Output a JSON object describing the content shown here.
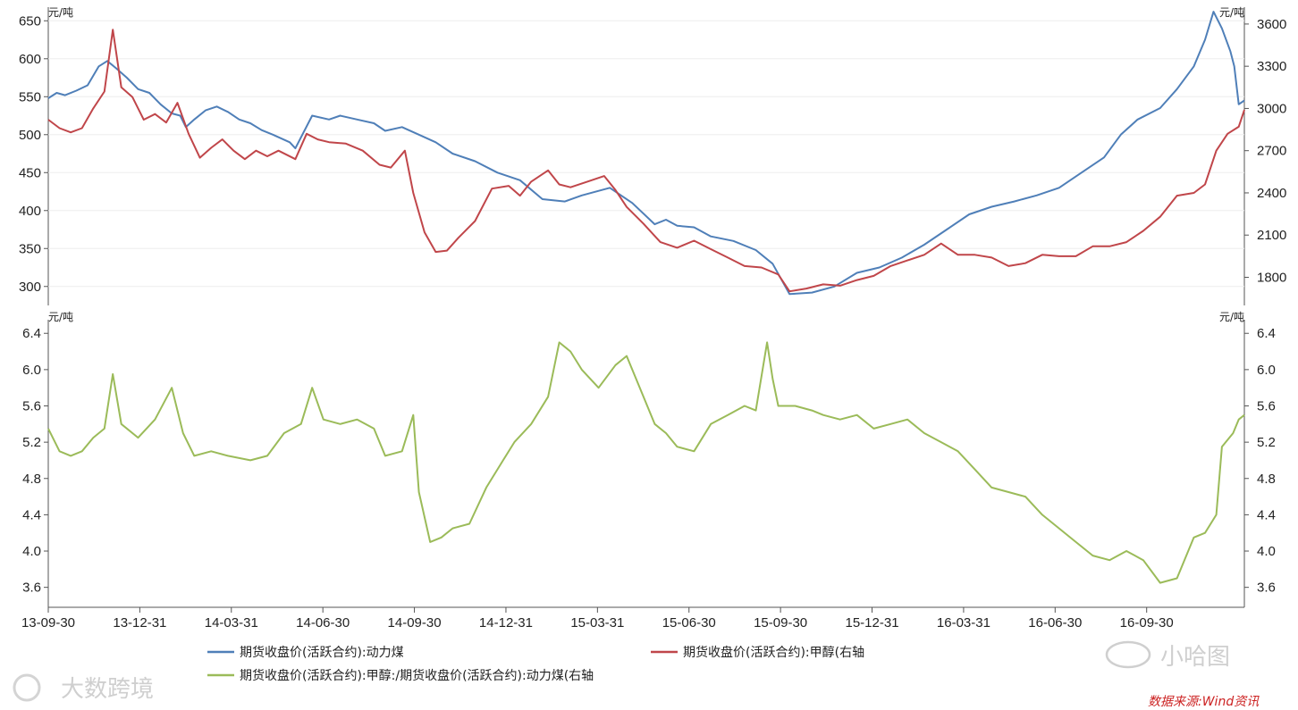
{
  "colors": {
    "coal": "#4f7fb8",
    "methanol": "#c0464a",
    "ratio": "#9bbb59",
    "axis": "#555555",
    "grid": "#eeeeee",
    "source": "#cc2222"
  },
  "units": {
    "top_left": "元/吨",
    "top_right": "元/吨",
    "bottom_left": "元/吨",
    "bottom_right": "元/吨"
  },
  "legend": {
    "coal": "期货收盘价(活跃合约):动力煤",
    "methanol": "期货收盘价(活跃合约):甲醇(右轴",
    "ratio": "期货收盘价(活跃合约):甲醇:/期货收盘价(活跃合约):动力煤(右轴"
  },
  "watermarks": {
    "left_logo": "大数跨境",
    "right_logo": "小哈图"
  },
  "source": "数据来源:Wind资讯",
  "chart_data": [
    {
      "type": "line",
      "title": "",
      "x_tick_labels": [
        "13-09-30",
        "13-12-31",
        "14-03-31",
        "14-06-30",
        "14-09-30",
        "14-12-31",
        "15-03-31",
        "15-06-30",
        "15-09-30",
        "15-12-31",
        "16-03-31",
        "16-06-30",
        "16-09-30"
      ],
      "y_left": {
        "ticks": [
          300,
          350,
          400,
          450,
          500,
          550,
          600,
          650
        ],
        "range": [
          275,
          668
        ]
      },
      "y_right": {
        "ticks": [
          1800,
          2100,
          2400,
          2700,
          3000,
          3300,
          3600
        ],
        "range": [
          1600,
          3720
        ]
      },
      "series": [
        {
          "name": "期货收盘价(活跃合约):动力煤",
          "axis": "left",
          "points": [
            [
              0,
              548
            ],
            [
              0.15,
              555
            ],
            [
              0.3,
              552
            ],
            [
              0.5,
              558
            ],
            [
              0.7,
              565
            ],
            [
              0.9,
              590
            ],
            [
              1.05,
              597
            ],
            [
              1.2,
              588
            ],
            [
              1.4,
              575
            ],
            [
              1.6,
              560
            ],
            [
              1.8,
              555
            ],
            [
              2.0,
              540
            ],
            [
              2.2,
              528
            ],
            [
              2.35,
              525
            ],
            [
              2.45,
              510
            ],
            [
              2.6,
              520
            ],
            [
              2.8,
              532
            ],
            [
              3.0,
              537
            ],
            [
              3.2,
              530
            ],
            [
              3.4,
              520
            ],
            [
              3.6,
              515
            ],
            [
              3.8,
              506
            ],
            [
              4.0,
              500
            ],
            [
              4.3,
              490
            ],
            [
              4.4,
              482
            ],
            [
              4.7,
              525
            ],
            [
              5.0,
              520
            ],
            [
              5.2,
              525
            ],
            [
              5.5,
              520
            ],
            [
              5.8,
              515
            ],
            [
              6.0,
              505
            ],
            [
              6.3,
              510
            ],
            [
              6.6,
              500
            ],
            [
              6.9,
              490
            ],
            [
              7.2,
              475
            ],
            [
              7.6,
              465
            ],
            [
              8.0,
              450
            ],
            [
              8.4,
              440
            ],
            [
              8.8,
              415
            ],
            [
              9.2,
              412
            ],
            [
              9.5,
              420
            ],
            [
              10.0,
              430
            ],
            [
              10.4,
              410
            ],
            [
              10.8,
              382
            ],
            [
              11.0,
              388
            ],
            [
              11.2,
              380
            ],
            [
              11.5,
              378
            ],
            [
              11.8,
              366
            ],
            [
              12.2,
              360
            ],
            [
              12.6,
              348
            ],
            [
              12.9,
              330
            ],
            [
              13.2,
              290
            ],
            [
              13.6,
              292
            ],
            [
              14.0,
              300
            ],
            [
              14.4,
              318
            ],
            [
              14.8,
              325
            ],
            [
              15.2,
              338
            ],
            [
              15.6,
              355
            ],
            [
              16.0,
              375
            ],
            [
              16.4,
              395
            ],
            [
              16.8,
              405
            ],
            [
              17.2,
              412
            ],
            [
              17.6,
              420
            ],
            [
              18.0,
              430
            ],
            [
              18.4,
              450
            ],
            [
              18.8,
              470
            ],
            [
              19.1,
              500
            ],
            [
              19.4,
              520
            ],
            [
              19.8,
              535
            ],
            [
              20.1,
              560
            ],
            [
              20.4,
              590
            ],
            [
              20.6,
              625
            ],
            [
              20.75,
              662
            ],
            [
              20.9,
              640
            ],
            [
              21.05,
              610
            ],
            [
              21.12,
              590
            ],
            [
              21.2,
              540
            ],
            [
              21.3,
              545
            ]
          ]
        },
        {
          "name": "期货收盘价(活跃合约):甲醇(右轴",
          "axis": "right",
          "points": [
            [
              0,
              2920
            ],
            [
              0.2,
              2860
            ],
            [
              0.4,
              2830
            ],
            [
              0.6,
              2860
            ],
            [
              0.8,
              3000
            ],
            [
              1.0,
              3120
            ],
            [
              1.15,
              3560
            ],
            [
              1.3,
              3150
            ],
            [
              1.5,
              3080
            ],
            [
              1.7,
              2920
            ],
            [
              1.9,
              2960
            ],
            [
              2.1,
              2900
            ],
            [
              2.3,
              3040
            ],
            [
              2.5,
              2820
            ],
            [
              2.7,
              2650
            ],
            [
              2.9,
              2720
            ],
            [
              3.1,
              2780
            ],
            [
              3.3,
              2700
            ],
            [
              3.5,
              2640
            ],
            [
              3.7,
              2700
            ],
            [
              3.9,
              2660
            ],
            [
              4.1,
              2700
            ],
            [
              4.4,
              2640
            ],
            [
              4.6,
              2820
            ],
            [
              4.8,
              2780
            ],
            [
              5.0,
              2760
            ],
            [
              5.3,
              2750
            ],
            [
              5.6,
              2700
            ],
            [
              5.9,
              2600
            ],
            [
              6.1,
              2580
            ],
            [
              6.35,
              2700
            ],
            [
              6.5,
              2400
            ],
            [
              6.7,
              2120
            ],
            [
              6.9,
              1980
            ],
            [
              7.1,
              1990
            ],
            [
              7.3,
              2080
            ],
            [
              7.6,
              2200
            ],
            [
              7.9,
              2430
            ],
            [
              8.2,
              2450
            ],
            [
              8.4,
              2380
            ],
            [
              8.6,
              2480
            ],
            [
              8.9,
              2560
            ],
            [
              9.1,
              2460
            ],
            [
              9.3,
              2440
            ],
            [
              9.6,
              2480
            ],
            [
              9.9,
              2520
            ],
            [
              10.1,
              2420
            ],
            [
              10.3,
              2300
            ],
            [
              10.6,
              2180
            ],
            [
              10.9,
              2050
            ],
            [
              11.2,
              2010
            ],
            [
              11.5,
              2060
            ],
            [
              11.8,
              2000
            ],
            [
              12.1,
              1940
            ],
            [
              12.4,
              1880
            ],
            [
              12.7,
              1870
            ],
            [
              13.0,
              1820
            ],
            [
              13.2,
              1700
            ],
            [
              13.5,
              1720
            ],
            [
              13.8,
              1750
            ],
            [
              14.1,
              1740
            ],
            [
              14.4,
              1780
            ],
            [
              14.7,
              1810
            ],
            [
              15.0,
              1880
            ],
            [
              15.3,
              1920
            ],
            [
              15.6,
              1960
            ],
            [
              15.9,
              2040
            ],
            [
              16.2,
              1960
            ],
            [
              16.5,
              1960
            ],
            [
              16.8,
              1940
            ],
            [
              17.1,
              1880
            ],
            [
              17.4,
              1900
            ],
            [
              17.7,
              1960
            ],
            [
              18.0,
              1950
            ],
            [
              18.3,
              1950
            ],
            [
              18.6,
              2020
            ],
            [
              18.9,
              2020
            ],
            [
              19.2,
              2050
            ],
            [
              19.5,
              2130
            ],
            [
              19.8,
              2230
            ],
            [
              20.1,
              2380
            ],
            [
              20.4,
              2400
            ],
            [
              20.6,
              2460
            ],
            [
              20.8,
              2700
            ],
            [
              21.0,
              2820
            ],
            [
              21.2,
              2870
            ],
            [
              21.3,
              2990
            ]
          ]
        },
        {
          "name": "期货收盘价(活跃合约):甲醇:/期货收盘价(活跃合约):动力煤(右轴",
          "axis": "right",
          "points": [
            [
              0,
              5.35
            ],
            [
              0.2,
              5.1
            ],
            [
              0.4,
              5.05
            ],
            [
              0.6,
              5.1
            ],
            [
              0.8,
              5.25
            ],
            [
              1.0,
              5.35
            ],
            [
              1.15,
              5.95
            ],
            [
              1.3,
              5.4
            ],
            [
              1.6,
              5.25
            ],
            [
              1.9,
              5.45
            ],
            [
              2.2,
              5.8
            ],
            [
              2.4,
              5.3
            ],
            [
              2.6,
              5.05
            ],
            [
              2.9,
              5.1
            ],
            [
              3.2,
              5.05
            ],
            [
              3.6,
              5.0
            ],
            [
              3.9,
              5.05
            ],
            [
              4.2,
              5.3
            ],
            [
              4.5,
              5.4
            ],
            [
              4.7,
              5.8
            ],
            [
              4.9,
              5.45
            ],
            [
              5.2,
              5.4
            ],
            [
              5.5,
              5.45
            ],
            [
              5.8,
              5.35
            ],
            [
              6.0,
              5.05
            ],
            [
              6.3,
              5.1
            ],
            [
              6.5,
              5.5
            ],
            [
              6.6,
              4.65
            ],
            [
              6.8,
              4.1
            ],
            [
              7.0,
              4.15
            ],
            [
              7.2,
              4.25
            ],
            [
              7.5,
              4.3
            ],
            [
              7.8,
              4.7
            ],
            [
              8.1,
              5.0
            ],
            [
              8.3,
              5.2
            ],
            [
              8.6,
              5.4
            ],
            [
              8.9,
              5.7
            ],
            [
              9.1,
              6.3
            ],
            [
              9.3,
              6.2
            ],
            [
              9.5,
              6.0
            ],
            [
              9.8,
              5.8
            ],
            [
              10.1,
              6.05
            ],
            [
              10.3,
              6.15
            ],
            [
              10.5,
              5.85
            ],
            [
              10.8,
              5.4
            ],
            [
              11.0,
              5.3
            ],
            [
              11.2,
              5.15
            ],
            [
              11.5,
              5.1
            ],
            [
              11.8,
              5.4
            ],
            [
              12.1,
              5.5
            ],
            [
              12.4,
              5.6
            ],
            [
              12.6,
              5.55
            ],
            [
              12.8,
              6.3
            ],
            [
              12.9,
              5.9
            ],
            [
              13.0,
              5.6
            ],
            [
              13.3,
              5.6
            ],
            [
              13.6,
              5.55
            ],
            [
              13.8,
              5.5
            ],
            [
              14.1,
              5.45
            ],
            [
              14.4,
              5.5
            ],
            [
              14.7,
              5.35
            ],
            [
              15.0,
              5.4
            ],
            [
              15.3,
              5.45
            ],
            [
              15.6,
              5.3
            ],
            [
              15.9,
              5.2
            ],
            [
              16.2,
              5.1
            ],
            [
              16.5,
              4.9
            ],
            [
              16.8,
              4.7
            ],
            [
              17.1,
              4.65
            ],
            [
              17.4,
              4.6
            ],
            [
              17.7,
              4.4
            ],
            [
              18.0,
              4.25
            ],
            [
              18.3,
              4.1
            ],
            [
              18.6,
              3.95
            ],
            [
              18.9,
              3.9
            ],
            [
              19.2,
              4.0
            ],
            [
              19.5,
              3.9
            ],
            [
              19.8,
              3.65
            ],
            [
              20.1,
              3.7
            ],
            [
              20.4,
              4.15
            ],
            [
              20.6,
              4.2
            ],
            [
              20.8,
              4.4
            ],
            [
              20.9,
              5.15
            ],
            [
              21.1,
              5.3
            ],
            [
              21.2,
              5.45
            ],
            [
              21.3,
              5.5
            ]
          ]
        }
      ],
      "y_bottom": {
        "ticks": [
          3.6,
          4.0,
          4.4,
          4.8,
          5.2,
          5.6,
          6.0,
          6.4
        ],
        "range": [
          3.38,
          6.55
        ]
      }
    }
  ]
}
